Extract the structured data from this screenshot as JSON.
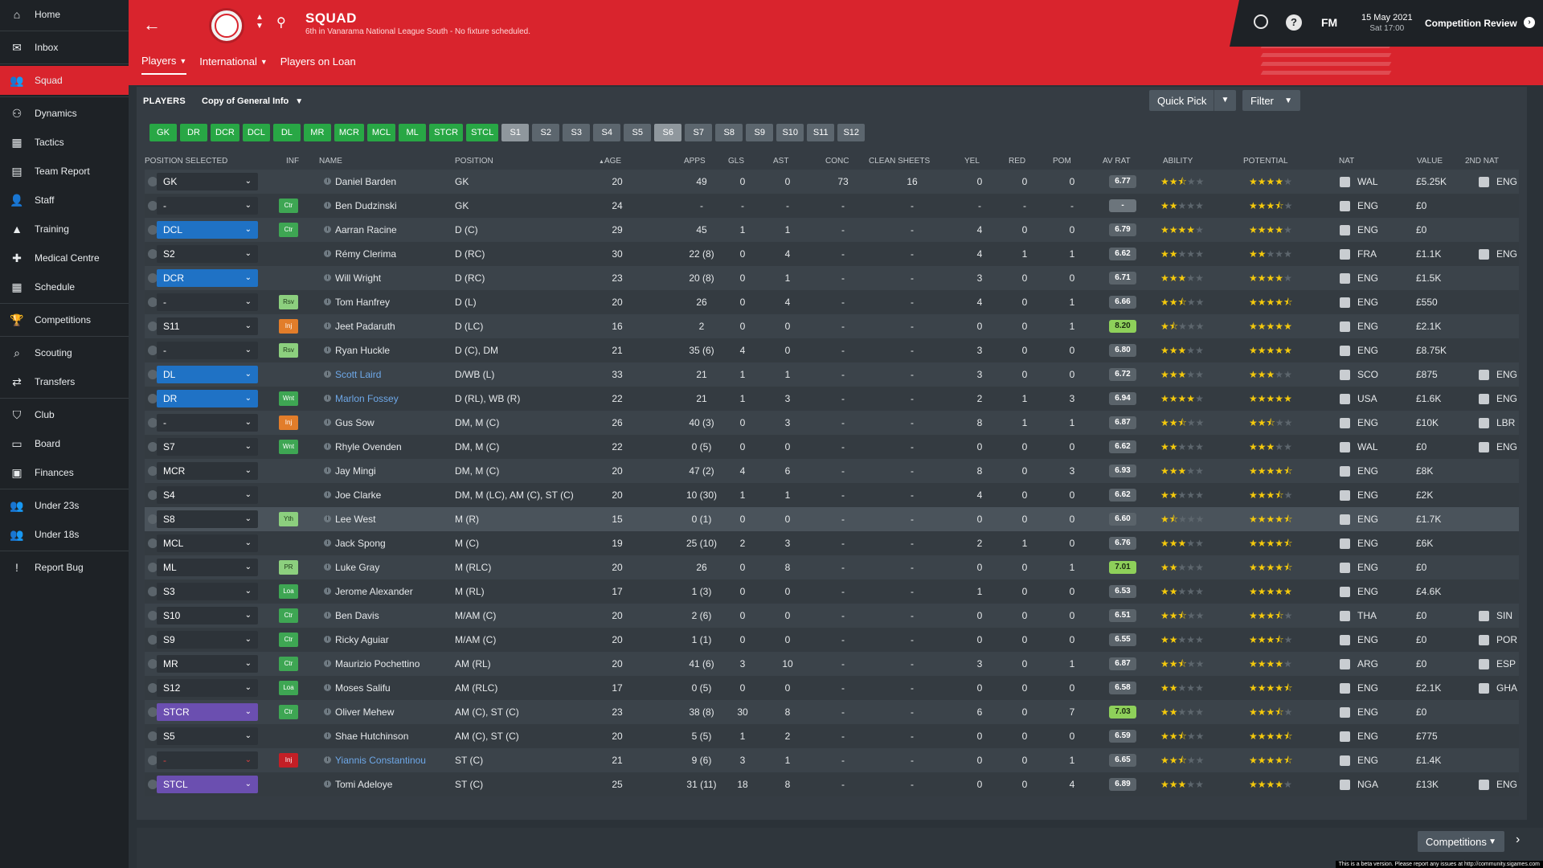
{
  "sidebar": {
    "items": [
      {
        "label": "Home",
        "icon": "home-icon",
        "glyph": "⌂"
      },
      {
        "label": "Inbox",
        "icon": "inbox-icon",
        "glyph": "✉"
      },
      {
        "label": "Squad",
        "icon": "squad-icon",
        "glyph": "👥",
        "active": true
      },
      {
        "label": "Dynamics",
        "icon": "dynamics-icon",
        "glyph": "⚇"
      },
      {
        "label": "Tactics",
        "icon": "tactics-icon",
        "glyph": "▦"
      },
      {
        "label": "Team Report",
        "icon": "report-icon",
        "glyph": "▤"
      },
      {
        "label": "Staff",
        "icon": "staff-icon",
        "glyph": "👤"
      },
      {
        "label": "Training",
        "icon": "training-icon",
        "glyph": "▲"
      },
      {
        "label": "Medical Centre",
        "icon": "medical-icon",
        "glyph": "✚"
      },
      {
        "label": "Schedule",
        "icon": "schedule-icon",
        "glyph": "▦"
      },
      {
        "label": "Competitions",
        "icon": "trophy-icon",
        "glyph": "🏆"
      },
      {
        "label": "Scouting",
        "icon": "search-icon",
        "glyph": "⌕"
      },
      {
        "label": "Transfers",
        "icon": "transfers-icon",
        "glyph": "⇄"
      },
      {
        "label": "Club",
        "icon": "shield-icon",
        "glyph": "⛉"
      },
      {
        "label": "Board",
        "icon": "board-icon",
        "glyph": "▭"
      },
      {
        "label": "Finances",
        "icon": "finances-icon",
        "glyph": "▣"
      },
      {
        "label": "Under 23s",
        "icon": "u23-icon",
        "glyph": "👥"
      },
      {
        "label": "Under 18s",
        "icon": "u18-icon",
        "glyph": "👥"
      },
      {
        "label": "Report Bug",
        "icon": "bug-icon",
        "glyph": "!"
      }
    ]
  },
  "header": {
    "title": "SQUAD",
    "subtitle": "6th in Vanarama National League South - No fixture scheduled.",
    "tabs": [
      "Players",
      "International",
      "Players on Loan"
    ],
    "brand": "FM",
    "date": "15 May 2021",
    "time": "Sat 17:00",
    "competition_review": "Competition Review",
    "help": "?"
  },
  "panel": {
    "players_label": "PLAYERS",
    "view": "Copy of General Info",
    "quick_pick": "Quick Pick",
    "filter": "Filter",
    "position_buttons": [
      {
        "label": "GK",
        "style": "green"
      },
      {
        "label": "DR",
        "style": "green"
      },
      {
        "label": "DCR",
        "style": "green"
      },
      {
        "label": "DCL",
        "style": "green"
      },
      {
        "label": "DL",
        "style": "green"
      },
      {
        "label": "MR",
        "style": "green"
      },
      {
        "label": "MCR",
        "style": "green"
      },
      {
        "label": "MCL",
        "style": "green"
      },
      {
        "label": "ML",
        "style": "green"
      },
      {
        "label": "STCR",
        "style": "green"
      },
      {
        "label": "STCL",
        "style": "green"
      },
      {
        "label": "S1",
        "style": "light"
      },
      {
        "label": "S2",
        "style": "grey"
      },
      {
        "label": "S3",
        "style": "grey"
      },
      {
        "label": "S4",
        "style": "grey"
      },
      {
        "label": "S5",
        "style": "grey"
      },
      {
        "label": "S6",
        "style": "light"
      },
      {
        "label": "S7",
        "style": "grey"
      },
      {
        "label": "S8",
        "style": "grey"
      },
      {
        "label": "S9",
        "style": "grey"
      },
      {
        "label": "S10",
        "style": "grey"
      },
      {
        "label": "S11",
        "style": "grey"
      },
      {
        "label": "S12",
        "style": "grey"
      }
    ]
  },
  "columns": {
    "position_selected": "POSITION SELECTED",
    "inf": "INF",
    "name": "NAME",
    "position": "POSITION",
    "age": "AGE",
    "apps": "APPS",
    "gls": "GLS",
    "ast": "AST",
    "conc": "CONC",
    "clean_sheets": "CLEAN SHEETS",
    "yel": "YEL",
    "red": "RED",
    "pom": "POM",
    "av_rat": "AV RAT",
    "ability": "ABILITY",
    "potential": "POTENTIAL",
    "nat": "NAT",
    "value": "VALUE",
    "second_nat": "2ND NAT"
  },
  "players": [
    {
      "sel": "GK",
      "sel_style": "dark",
      "inf": "",
      "name": "Daniel Barden",
      "pos": "GK",
      "age": "20",
      "apps": "49",
      "gls": "0",
      "ast": "0",
      "conc": "73",
      "cs": "16",
      "yel": "0",
      "red": "0",
      "pom": "0",
      "rat": "6.77",
      "rat_style": "",
      "ability": 2.5,
      "potential": 4,
      "nat": "WAL",
      "value": "£5.25K",
      "nat2": "ENG"
    },
    {
      "sel": "-",
      "sel_style": "dark",
      "inf": "Ctr",
      "inf_style": "g",
      "name": "Ben Dudzinski",
      "pos": "GK",
      "age": "24",
      "apps": "-",
      "gls": "-",
      "ast": "-",
      "conc": "-",
      "cs": "-",
      "yel": "-",
      "red": "-",
      "pom": "-",
      "rat": "-",
      "rat_style": "blank",
      "ability": 2,
      "potential": 3.5,
      "nat": "ENG",
      "value": "£0",
      "nat2": ""
    },
    {
      "sel": "DCL",
      "sel_style": "blue",
      "inf": "Ctr",
      "inf_style": "g",
      "name": "Aarran Racine",
      "pos": "D (C)",
      "age": "29",
      "apps": "45",
      "gls": "1",
      "ast": "1",
      "conc": "-",
      "cs": "-",
      "yel": "4",
      "red": "0",
      "pom": "0",
      "rat": "6.79",
      "rat_style": "",
      "ability": 4,
      "potential": 4,
      "nat": "ENG",
      "value": "£0",
      "nat2": ""
    },
    {
      "sel": "S2",
      "sel_style": "dark",
      "inf": "",
      "name": "Rémy Clerima",
      "pos": "D (RC)",
      "age": "30",
      "apps": "22 (8)",
      "gls": "0",
      "ast": "4",
      "conc": "-",
      "cs": "-",
      "yel": "4",
      "red": "1",
      "pom": "1",
      "rat": "6.62",
      "rat_style": "",
      "ability": 2,
      "potential": 2,
      "nat": "FRA",
      "value": "£1.1K",
      "nat2": "ENG"
    },
    {
      "sel": "DCR",
      "sel_style": "blue",
      "inf": "",
      "name": "Will Wright",
      "pos": "D (RC)",
      "age": "23",
      "apps": "20 (8)",
      "gls": "0",
      "ast": "1",
      "conc": "-",
      "cs": "-",
      "yel": "3",
      "red": "0",
      "pom": "0",
      "rat": "6.71",
      "rat_style": "",
      "ability": 3,
      "potential": 4,
      "nat": "ENG",
      "value": "£1.5K",
      "nat2": ""
    },
    {
      "sel": "-",
      "sel_style": "dark",
      "inf": "Rsv",
      "inf_style": "lg",
      "name": "Tom Hanfrey",
      "pos": "D (L)",
      "age": "20",
      "apps": "26",
      "gls": "0",
      "ast": "4",
      "conc": "-",
      "cs": "-",
      "yel": "4",
      "red": "0",
      "pom": "1",
      "rat": "6.66",
      "rat_style": "",
      "ability": 2.5,
      "potential": 4.5,
      "nat": "ENG",
      "value": "£550",
      "nat2": ""
    },
    {
      "sel": "S11",
      "sel_style": "dark",
      "inf": "Inj",
      "inf_style": "o",
      "name": "Jeet Padaruth",
      "pos": "D (LC)",
      "age": "16",
      "apps": "2",
      "gls": "0",
      "ast": "0",
      "conc": "-",
      "cs": "-",
      "yel": "0",
      "red": "0",
      "pom": "1",
      "rat": "8.20",
      "rat_style": "good",
      "ability": 1.5,
      "potential": 5,
      "nat": "ENG",
      "value": "£2.1K",
      "nat2": ""
    },
    {
      "sel": "-",
      "sel_style": "dark",
      "inf": "Rsv",
      "inf_style": "lg",
      "name": "Ryan Huckle",
      "pos": "D (C), DM",
      "age": "21",
      "apps": "35 (6)",
      "gls": "4",
      "ast": "0",
      "conc": "-",
      "cs": "-",
      "yel": "3",
      "red": "0",
      "pom": "0",
      "rat": "6.80",
      "rat_style": "",
      "ability": 3,
      "potential": 5,
      "nat": "ENG",
      "value": "£8.75K",
      "nat2": ""
    },
    {
      "sel": "DL",
      "sel_style": "blue",
      "inf": "",
      "name": "Scott Laird",
      "link": true,
      "pos": "D/WB (L)",
      "age": "33",
      "apps": "21",
      "gls": "1",
      "ast": "1",
      "conc": "-",
      "cs": "-",
      "yel": "3",
      "red": "0",
      "pom": "0",
      "rat": "6.72",
      "rat_style": "",
      "ability": 3,
      "potential": 3,
      "nat": "SCO",
      "value": "£875",
      "nat2": "ENG"
    },
    {
      "sel": "DR",
      "sel_style": "blue",
      "inf": "Wnt",
      "inf_style": "g",
      "name": "Marlon Fossey",
      "link": true,
      "pos": "D (RL), WB (R)",
      "age": "22",
      "apps": "21",
      "gls": "1",
      "ast": "3",
      "conc": "-",
      "cs": "-",
      "yel": "2",
      "red": "1",
      "pom": "3",
      "rat": "6.94",
      "rat_style": "",
      "ability": 4,
      "potential": 5,
      "nat": "USA",
      "value": "£1.6K",
      "nat2": "ENG"
    },
    {
      "sel": "-",
      "sel_style": "dark",
      "inf": "Inj",
      "inf_style": "o",
      "name": "Gus Sow",
      "pos": "DM, M (C)",
      "age": "26",
      "apps": "40 (3)",
      "gls": "0",
      "ast": "3",
      "conc": "-",
      "cs": "-",
      "yel": "8",
      "red": "1",
      "pom": "1",
      "rat": "6.87",
      "rat_style": "",
      "ability": 2.5,
      "potential": 2.5,
      "nat": "ENG",
      "value": "£10K",
      "nat2": "LBR"
    },
    {
      "sel": "S7",
      "sel_style": "dark",
      "inf": "Wnt",
      "inf_style": "g",
      "name": "Rhyle Ovenden",
      "pos": "DM, M (C)",
      "age": "22",
      "apps": "0 (5)",
      "gls": "0",
      "ast": "0",
      "conc": "-",
      "cs": "-",
      "yel": "0",
      "red": "0",
      "pom": "0",
      "rat": "6.62",
      "rat_style": "",
      "ability": 2,
      "potential": 3,
      "nat": "WAL",
      "value": "£0",
      "nat2": "ENG"
    },
    {
      "sel": "MCR",
      "sel_style": "dark",
      "inf": "",
      "name": "Jay Mingi",
      "pos": "DM, M (C)",
      "age": "20",
      "apps": "47 (2)",
      "gls": "4",
      "ast": "6",
      "conc": "-",
      "cs": "-",
      "yel": "8",
      "red": "0",
      "pom": "3",
      "rat": "6.93",
      "rat_style": "",
      "ability": 3,
      "potential": 4.5,
      "nat": "ENG",
      "value": "£8K",
      "nat2": ""
    },
    {
      "sel": "S4",
      "sel_style": "dark",
      "inf": "",
      "name": "Joe Clarke",
      "pos": "DM, M (LC), AM (C), ST (C)",
      "age": "20",
      "apps": "10 (30)",
      "gls": "1",
      "ast": "1",
      "conc": "-",
      "cs": "-",
      "yel": "4",
      "red": "0",
      "pom": "0",
      "rat": "6.62",
      "rat_style": "",
      "ability": 2,
      "potential": 3.5,
      "nat": "ENG",
      "value": "£2K",
      "nat2": ""
    },
    {
      "sel": "S8",
      "sel_style": "dark",
      "inf": "Yth",
      "inf_style": "lg",
      "name": "Lee West",
      "pos": "M (R)",
      "age": "15",
      "apps": "0 (1)",
      "gls": "0",
      "ast": "0",
      "conc": "-",
      "cs": "-",
      "yel": "0",
      "red": "0",
      "pom": "0",
      "rat": "6.60",
      "rat_style": "",
      "ability": 1.5,
      "potential": 4.5,
      "nat": "ENG",
      "value": "£1.7K",
      "nat2": "",
      "hl": true
    },
    {
      "sel": "MCL",
      "sel_style": "dark",
      "inf": "",
      "name": "Jack Spong",
      "pos": "M (C)",
      "age": "19",
      "apps": "25 (10)",
      "gls": "2",
      "ast": "3",
      "conc": "-",
      "cs": "-",
      "yel": "2",
      "red": "1",
      "pom": "0",
      "rat": "6.76",
      "rat_style": "",
      "ability": 3,
      "potential": 4.5,
      "nat": "ENG",
      "value": "£6K",
      "nat2": ""
    },
    {
      "sel": "ML",
      "sel_style": "dark",
      "inf": "PR",
      "inf_style": "lg",
      "name": "Luke Gray",
      "pos": "M (RLC)",
      "age": "20",
      "apps": "26",
      "gls": "0",
      "ast": "8",
      "conc": "-",
      "cs": "-",
      "yel": "0",
      "red": "0",
      "pom": "1",
      "rat": "7.01",
      "rat_style": "good",
      "ability": 2,
      "potential": 4.5,
      "nat": "ENG",
      "value": "£0",
      "nat2": ""
    },
    {
      "sel": "S3",
      "sel_style": "dark",
      "inf": "Loa",
      "inf_style": "g",
      "name": "Jerome Alexander",
      "pos": "M (RL)",
      "age": "17",
      "apps": "1 (3)",
      "gls": "0",
      "ast": "0",
      "conc": "-",
      "cs": "-",
      "yel": "1",
      "red": "0",
      "pom": "0",
      "rat": "6.53",
      "rat_style": "",
      "ability": 2,
      "potential": 5,
      "nat": "ENG",
      "value": "£4.6K",
      "nat2": ""
    },
    {
      "sel": "S10",
      "sel_style": "dark",
      "inf": "Ctr",
      "inf_style": "g",
      "name": "Ben Davis",
      "pos": "M/AM (C)",
      "age": "20",
      "apps": "2 (6)",
      "gls": "0",
      "ast": "0",
      "conc": "-",
      "cs": "-",
      "yel": "0",
      "red": "0",
      "pom": "0",
      "rat": "6.51",
      "rat_style": "",
      "ability": 2.5,
      "potential": 3.5,
      "nat": "THA",
      "value": "£0",
      "nat2": "SIN"
    },
    {
      "sel": "S9",
      "sel_style": "dark",
      "inf": "Ctr",
      "inf_style": "g",
      "name": "Ricky Aguiar",
      "pos": "M/AM (C)",
      "age": "20",
      "apps": "1 (1)",
      "gls": "0",
      "ast": "0",
      "conc": "-",
      "cs": "-",
      "yel": "0",
      "red": "0",
      "pom": "0",
      "rat": "6.55",
      "rat_style": "",
      "ability": 2,
      "potential": 3.5,
      "nat": "ENG",
      "value": "£0",
      "nat2": "POR"
    },
    {
      "sel": "MR",
      "sel_style": "dark",
      "inf": "Ctr",
      "inf_style": "g",
      "name": "Maurizio Pochettino",
      "pos": "AM (RL)",
      "age": "20",
      "apps": "41 (6)",
      "gls": "3",
      "ast": "10",
      "conc": "-",
      "cs": "-",
      "yel": "3",
      "red": "0",
      "pom": "1",
      "rat": "6.87",
      "rat_style": "",
      "ability": 2.5,
      "potential": 4,
      "nat": "ARG",
      "value": "£0",
      "nat2": "ESP"
    },
    {
      "sel": "S12",
      "sel_style": "dark",
      "inf": "Loa",
      "inf_style": "g",
      "name": "Moses Salifu",
      "pos": "AM (RLC)",
      "age": "17",
      "apps": "0 (5)",
      "gls": "0",
      "ast": "0",
      "conc": "-",
      "cs": "-",
      "yel": "0",
      "red": "0",
      "pom": "0",
      "rat": "6.58",
      "rat_style": "",
      "ability": 2,
      "potential": 4.5,
      "nat": "ENG",
      "value": "£2.1K",
      "nat2": "GHA"
    },
    {
      "sel": "STCR",
      "sel_style": "purple",
      "inf": "Ctr",
      "inf_style": "g",
      "name": "Oliver Mehew",
      "pos": "AM (C), ST (C)",
      "age": "23",
      "apps": "38 (8)",
      "gls": "30",
      "ast": "8",
      "conc": "-",
      "cs": "-",
      "yel": "6",
      "red": "0",
      "pom": "7",
      "rat": "7.03",
      "rat_style": "good",
      "ability": 2,
      "potential": 3.5,
      "nat": "ENG",
      "value": "£0",
      "nat2": ""
    },
    {
      "sel": "S5",
      "sel_style": "dark",
      "inf": "",
      "name": "Shae Hutchinson",
      "pos": "AM (C), ST (C)",
      "age": "20",
      "apps": "5 (5)",
      "gls": "1",
      "ast": "2",
      "conc": "-",
      "cs": "-",
      "yel": "0",
      "red": "0",
      "pom": "0",
      "rat": "6.59",
      "rat_style": "",
      "ability": 2.5,
      "potential": 4.5,
      "nat": "ENG",
      "value": "£775",
      "nat2": ""
    },
    {
      "sel": "-",
      "sel_style": "dark",
      "sel_red": true,
      "inf": "Inj",
      "inf_style": "r",
      "name": "Yiannis Constantinou",
      "link": true,
      "pos": "ST (C)",
      "age": "21",
      "apps": "9 (6)",
      "gls": "3",
      "ast": "1",
      "conc": "-",
      "cs": "-",
      "yel": "0",
      "red": "0",
      "pom": "1",
      "rat": "6.65",
      "rat_style": "",
      "ability": 2.5,
      "potential": 4.5,
      "nat": "ENG",
      "value": "£1.4K",
      "nat2": ""
    },
    {
      "sel": "STCL",
      "sel_style": "purple",
      "inf": "",
      "name": "Tomi Adeloye",
      "pos": "ST (C)",
      "age": "25",
      "apps": "31 (11)",
      "gls": "18",
      "ast": "8",
      "conc": "-",
      "cs": "-",
      "yel": "0",
      "red": "0",
      "pom": "4",
      "rat": "6.89",
      "rat_style": "",
      "ability": 3,
      "potential": 4,
      "nat": "NGA",
      "value": "£13K",
      "nat2": "ENG"
    }
  ],
  "bottom": {
    "competitions": "Competitions",
    "beta_note": "This is a beta version. Please report any issues at http://community.sigames.com"
  },
  "colors": {
    "accent": "#d9242d",
    "sidebar": "#1e2226",
    "star": "#f4c90c"
  }
}
